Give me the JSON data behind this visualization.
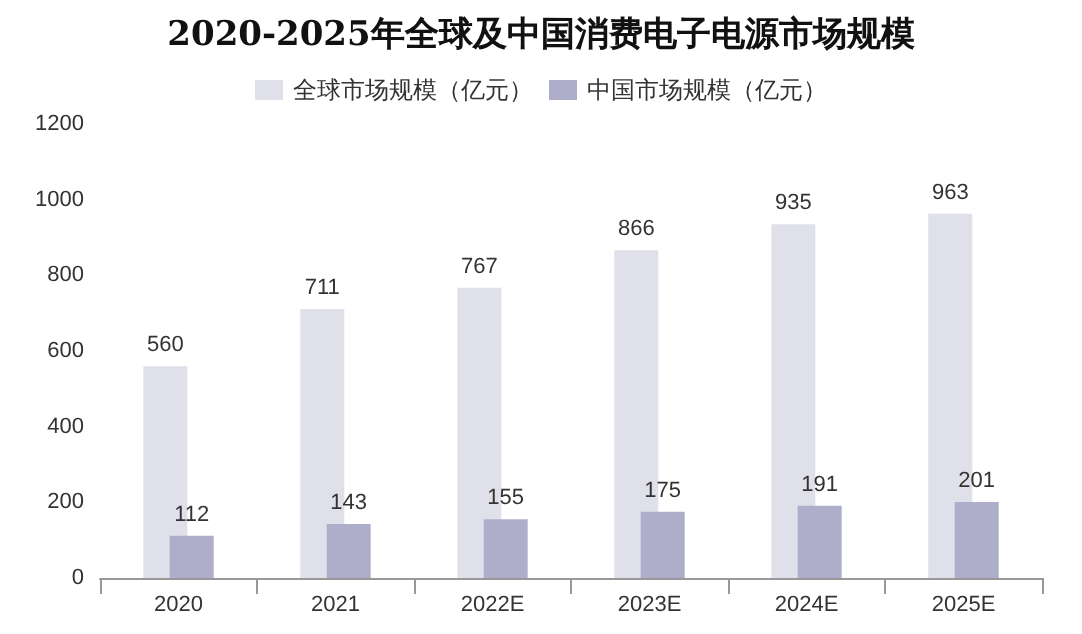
{
  "chart_data": {
    "type": "bar",
    "title": "2020-2025年全球及中国消费电子电源市场规模",
    "categories": [
      "2020",
      "2021",
      "2022E",
      "2023E",
      "2024E",
      "2025E"
    ],
    "series": [
      {
        "name": "全球市场规模（亿元）",
        "color": "#dfe0e9",
        "values": [
          560,
          711,
          767,
          866,
          935,
          963
        ]
      },
      {
        "name": "中国市场规模（亿元）",
        "color": "#aeaecb",
        "values": [
          112,
          143,
          155,
          175,
          191,
          201
        ]
      }
    ],
    "ylim": [
      0,
      1200
    ],
    "yticks": [
      0,
      200,
      400,
      600,
      800,
      1000,
      1200
    ],
    "grid": false,
    "legend": "top",
    "data_labels": true
  }
}
